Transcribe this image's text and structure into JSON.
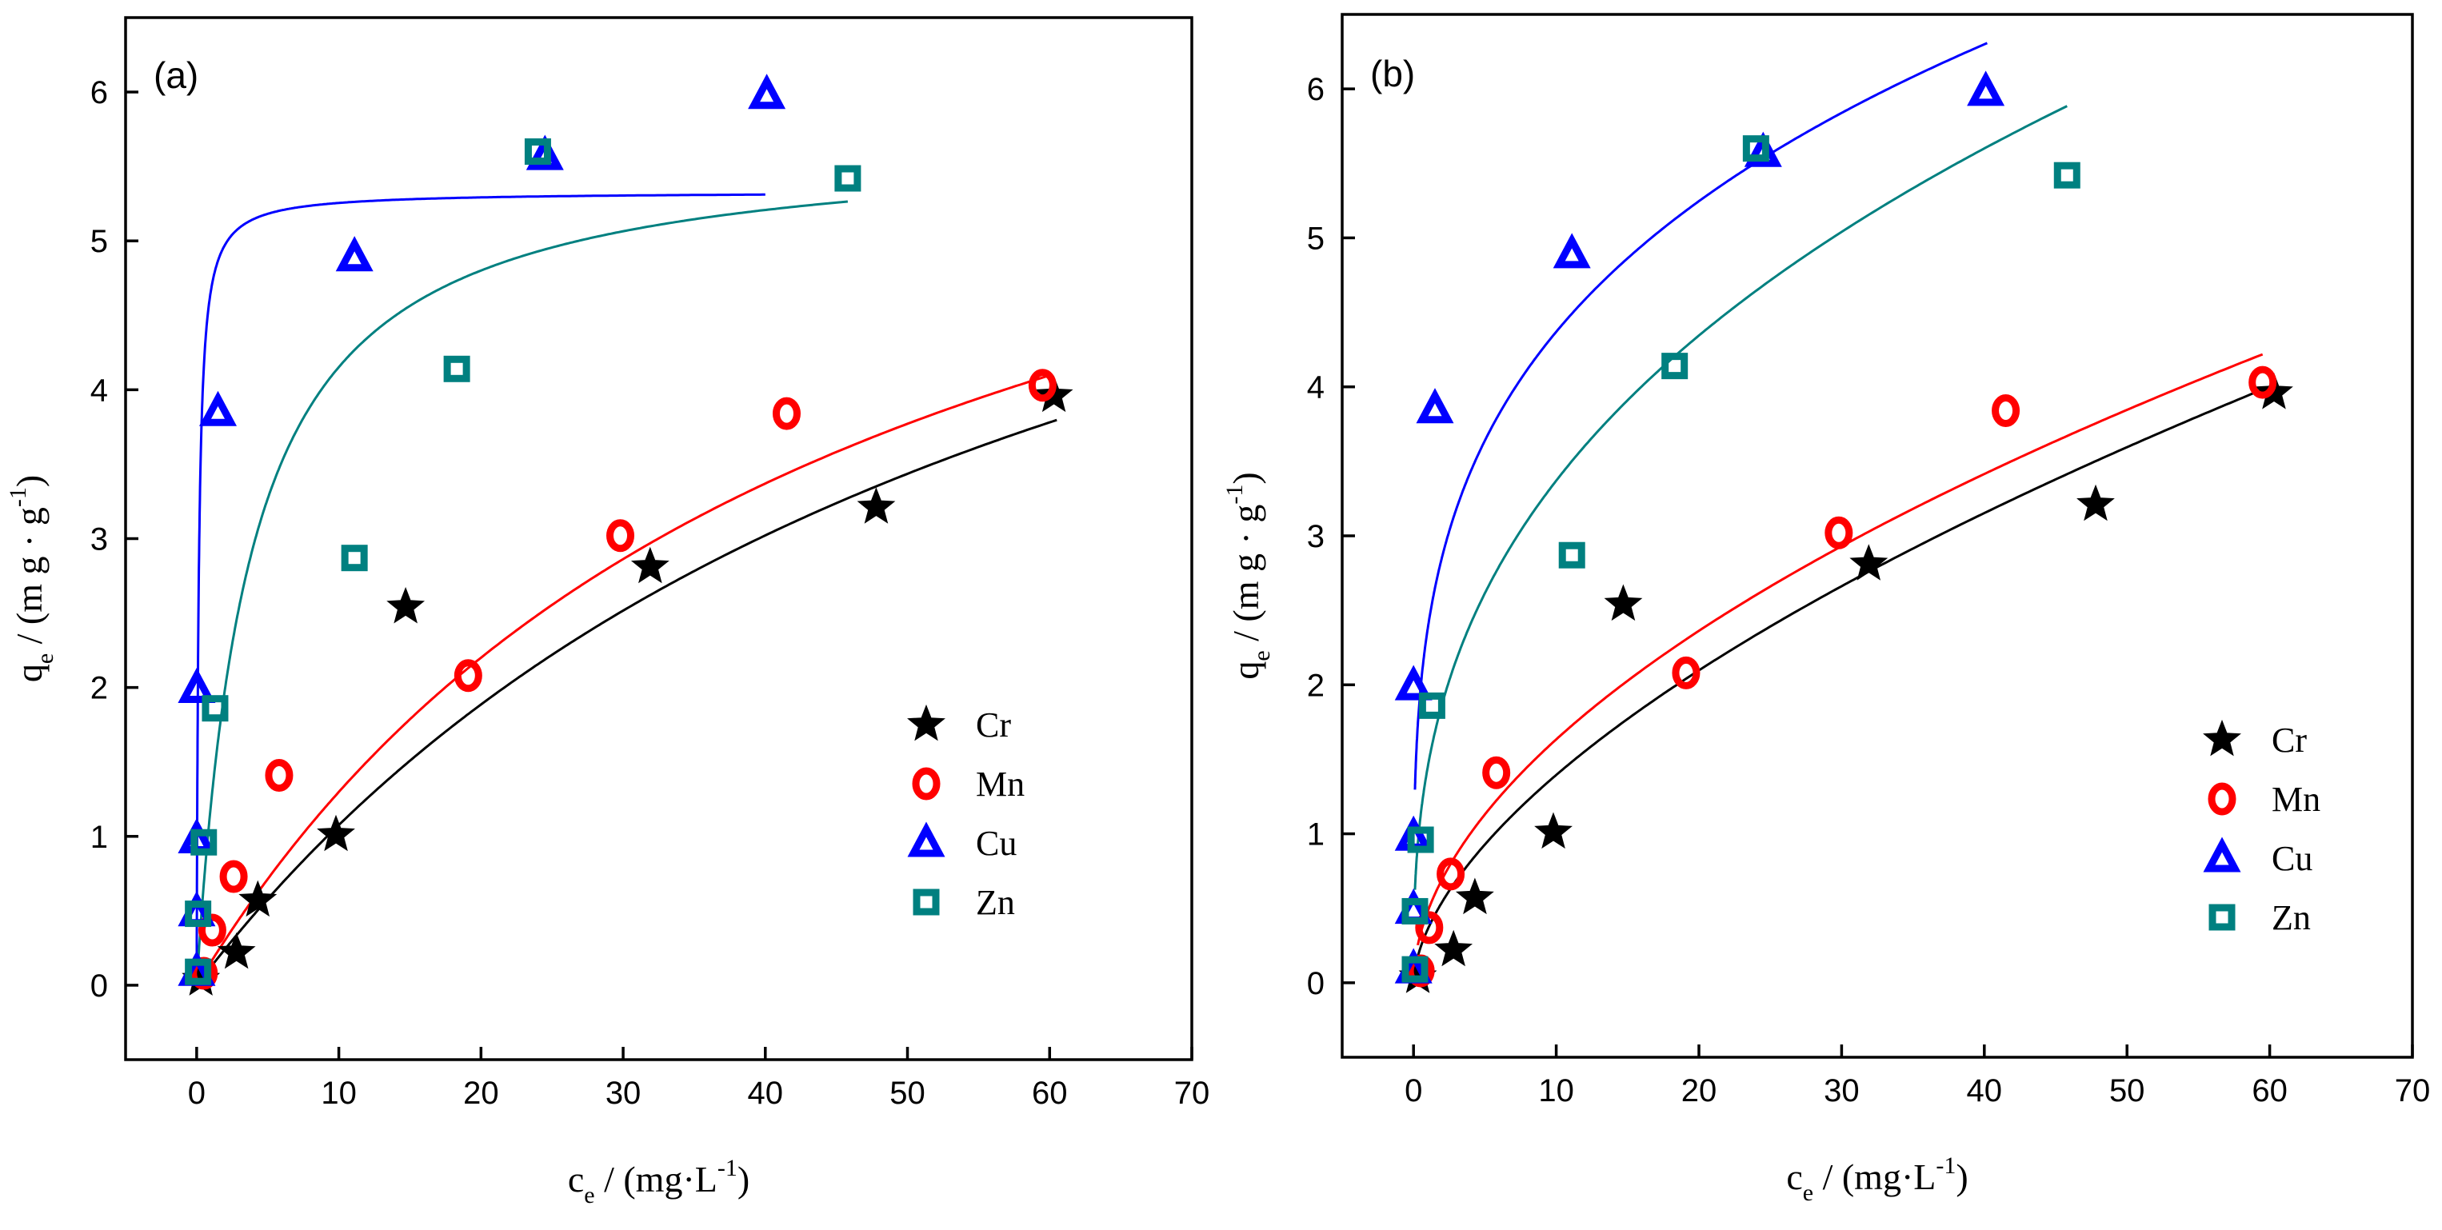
{
  "chart_data": [
    {
      "type": "scatter",
      "panel_label": "(a)",
      "xlabel": {
        "main": "c",
        "sub": "e",
        "rest": " / (mg·L",
        "sup": "-1",
        "close": ")"
      },
      "ylabel": {
        "main": "q",
        "sub": "e",
        "rest": " / (m g · g",
        "sup": "-1",
        "close": ")"
      },
      "xlim": [
        -5,
        70
      ],
      "ylim": [
        -0.5,
        6.5
      ],
      "xticks": [
        0,
        10,
        20,
        30,
        40,
        50,
        60,
        70
      ],
      "yticks": [
        0,
        1,
        2,
        3,
        4,
        5,
        6
      ],
      "xtick_labels": [
        "0",
        "10",
        "20",
        "30",
        "40",
        "50",
        "60",
        "70"
      ],
      "ytick_labels": [
        "0",
        "1",
        "2",
        "3",
        "4",
        "5",
        "6"
      ],
      "legend_position": "lower-right",
      "series": [
        {
          "name": "Cr",
          "marker": "star",
          "color": "#000000",
          "x": [
            0.3,
            2.8,
            4.3,
            9.8,
            14.7,
            31.9,
            47.8,
            60.3
          ],
          "y": [
            0.04,
            0.22,
            0.57,
            1.01,
            2.54,
            2.81,
            3.21,
            3.96
          ],
          "fit": {
            "model": "langmuir",
            "qmax": 7.6,
            "K": 0.0165,
            "xmin": 0.3,
            "xmax": 60.5
          }
        },
        {
          "name": "Mn",
          "marker": "circle",
          "color": "#ff0000",
          "x": [
            0.5,
            1.1,
            2.6,
            5.8,
            19.1,
            29.8,
            41.5,
            59.5
          ],
          "y": [
            0.08,
            0.37,
            0.73,
            1.41,
            2.08,
            3.02,
            3.84,
            4.03
          ],
          "fit": {
            "model": "langmuir",
            "qmax": 7.2,
            "K": 0.022,
            "xmin": 0.3,
            "xmax": 60.0
          }
        },
        {
          "name": "Cu",
          "marker": "triangle",
          "color": "#0000ff",
          "x": [
            0.0,
            0.0,
            0.0,
            0.0,
            1.5,
            11.1,
            24.5,
            40.1
          ],
          "y": [
            0.09,
            0.49,
            0.98,
            1.99,
            3.85,
            4.89,
            5.57,
            5.98
          ],
          "fit": {
            "model": "langmuir",
            "qmax": 5.33,
            "K": 7.0,
            "xmin": 0.0,
            "xmax": 40.0
          }
        },
        {
          "name": "Zn",
          "marker": "square",
          "color": "#008080",
          "x": [
            0.1,
            0.1,
            0.5,
            1.3,
            11.1,
            18.3,
            24.0,
            45.8
          ],
          "y": [
            0.09,
            0.48,
            0.96,
            1.86,
            2.87,
            4.14,
            5.6,
            5.42
          ],
          "fit": {
            "model": "langmuir",
            "qmax": 5.69,
            "K": 0.27,
            "xmin": 0.0,
            "xmax": 45.8
          }
        }
      ]
    },
    {
      "type": "scatter",
      "panel_label": "(b)",
      "xlabel": {
        "main": "c",
        "sub": "e",
        "rest": " / (mg·L",
        "sup": "-1",
        "close": ")"
      },
      "ylabel": {
        "main": "q",
        "sub": "e",
        "rest": " / (m g · g",
        "sup": "-1",
        "close": ")"
      },
      "xlim": [
        -5,
        70
      ],
      "ylim": [
        -0.5,
        6.5
      ],
      "xticks": [
        0,
        10,
        20,
        30,
        40,
        50,
        60,
        70
      ],
      "yticks": [
        0,
        1,
        2,
        3,
        4,
        5,
        6
      ],
      "xtick_labels": [
        "0",
        "10",
        "20",
        "30",
        "40",
        "50",
        "60",
        "70"
      ],
      "ytick_labels": [
        "0",
        "1",
        "2",
        "3",
        "4",
        "5",
        "6"
      ],
      "legend_position": "lower-right",
      "series": [
        {
          "name": "Cr",
          "marker": "star",
          "color": "#000000",
          "x": [
            0.3,
            2.8,
            4.3,
            9.8,
            14.7,
            31.9,
            47.8,
            60.3
          ],
          "y": [
            0.04,
            0.22,
            0.57,
            1.01,
            2.54,
            2.81,
            3.21,
            3.96
          ],
          "fit": {
            "model": "freundlich",
            "KF": 0.36,
            "n": 1.7,
            "xmin": 0.3,
            "xmax": 60.5
          }
        },
        {
          "name": "Mn",
          "marker": "circle",
          "color": "#ff0000",
          "x": [
            0.5,
            1.1,
            2.6,
            5.8,
            19.1,
            29.8,
            41.5,
            59.5
          ],
          "y": [
            0.08,
            0.37,
            0.73,
            1.41,
            2.08,
            3.02,
            3.84,
            4.03
          ],
          "fit": {
            "model": "freundlich",
            "KF": 0.48,
            "n": 1.88,
            "xmin": 0.3,
            "xmax": 59.5
          }
        },
        {
          "name": "Cu",
          "marker": "triangle",
          "color": "#0000ff",
          "x": [
            0.0,
            0.0,
            0.0,
            0.0,
            1.5,
            11.1,
            24.5,
            40.1
          ],
          "y": [
            0.09,
            0.49,
            0.98,
            1.99,
            3.85,
            4.89,
            5.57,
            5.98
          ],
          "fit": {
            "model": "freundlich",
            "KF": 2.38,
            "n": 3.79,
            "xmin": 0.1,
            "xmax": 40.2
          }
        },
        {
          "name": "Zn",
          "marker": "square",
          "color": "#008080",
          "x": [
            0.1,
            0.1,
            0.5,
            1.3,
            11.1,
            18.3,
            24.0,
            45.8
          ],
          "y": [
            0.09,
            0.48,
            0.96,
            1.86,
            2.87,
            4.14,
            5.6,
            5.42
          ],
          "fit": {
            "model": "freundlich",
            "KF": 1.45,
            "n": 2.73,
            "xmin": 0.1,
            "xmax": 45.8
          }
        }
      ]
    }
  ]
}
